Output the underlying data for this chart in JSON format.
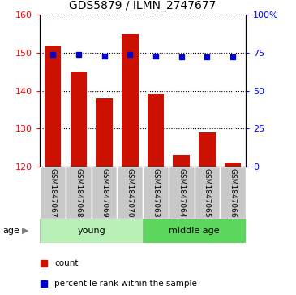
{
  "title": "GDS5879 / ILMN_2747677",
  "samples": [
    "GSM1847067",
    "GSM1847068",
    "GSM1847069",
    "GSM1847070",
    "GSM1847063",
    "GSM1847064",
    "GSM1847065",
    "GSM1847066"
  ],
  "bar_values": [
    152,
    145,
    138,
    155,
    139,
    123,
    129,
    121
  ],
  "percentile_values": [
    74,
    74,
    73,
    74,
    73,
    72,
    72,
    72
  ],
  "group_labels": [
    "young",
    "middle age"
  ],
  "group_color_young": "#b8f0b8",
  "group_color_middle": "#5cd65c",
  "bar_color": "#cc1100",
  "percentile_color": "#0000cc",
  "ylim_left": [
    120,
    160
  ],
  "ylim_right": [
    0,
    100
  ],
  "yticks_left": [
    120,
    130,
    140,
    150,
    160
  ],
  "yticks_right": [
    0,
    25,
    50,
    75,
    100
  ],
  "ytick_labels_right": [
    "0",
    "25",
    "50",
    "75",
    "100%"
  ],
  "bar_width": 0.65,
  "sample_bg_color": "#c8c8c8",
  "legend_count": "count",
  "legend_pct": "percentile rank within the sample"
}
